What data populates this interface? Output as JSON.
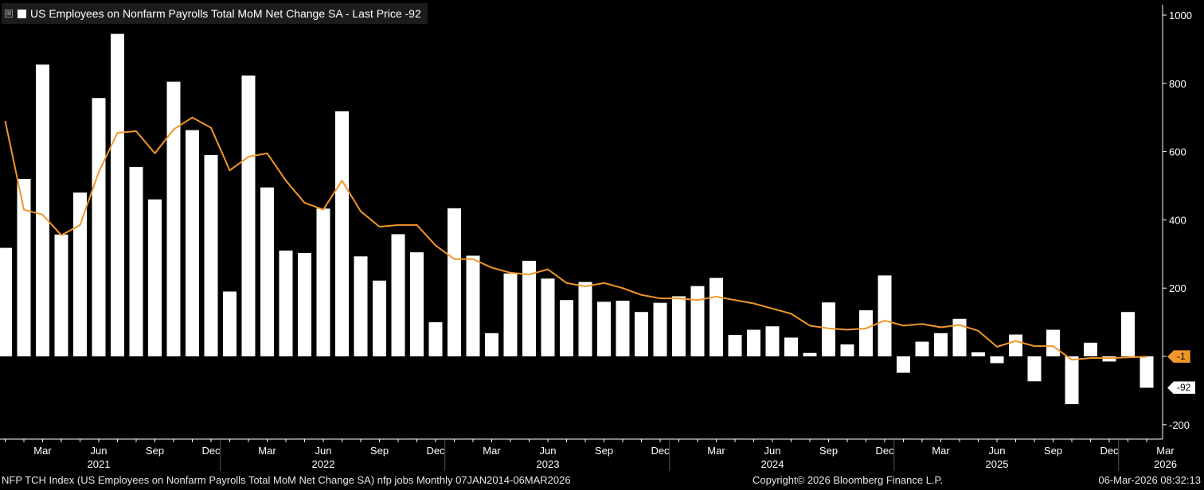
{
  "legend": {
    "expand_symbol": "⊞",
    "label": "US Employees on Nonfarm Payrolls Total MoM Net Change SA - Last Price -92"
  },
  "footer": {
    "left": "NFP TCH Index (US Employees on Nonfarm Payrolls Total MoM Net Change SA) nfp jobs Monthly 07JAN2014-06MAR2026",
    "center": "Copyright© 2026 Bloomberg Finance L.P.",
    "right": "06-Mar-2026 08:32:13"
  },
  "tags": {
    "moving_average": "-1",
    "last_price": "-92"
  },
  "colors": {
    "background": "#000000",
    "bars": "#ffffff",
    "moving_average": "#f0962a",
    "axis": "#ffffff"
  },
  "chart_data": {
    "type": "bar",
    "title": "US Employees on Nonfarm Payrolls Total MoM Net Change SA - Last Price -92",
    "ylim": [
      -240,
      1020
    ],
    "yticks": [
      -200,
      0,
      200,
      400,
      600,
      800,
      1000
    ],
    "ytick_labels": [
      "-200",
      "",
      "200",
      "400",
      "600",
      "800",
      "1000"
    ],
    "month_labels": [
      {
        "index": 2,
        "label": "Mar"
      },
      {
        "index": 5,
        "label": "Jun"
      },
      {
        "index": 8,
        "label": "Sep"
      },
      {
        "index": 11,
        "label": "Dec"
      },
      {
        "index": 14,
        "label": "Mar"
      },
      {
        "index": 17,
        "label": "Jun"
      },
      {
        "index": 20,
        "label": "Sep"
      },
      {
        "index": 23,
        "label": "Dec"
      },
      {
        "index": 26,
        "label": "Mar"
      },
      {
        "index": 29,
        "label": "Jun"
      },
      {
        "index": 32,
        "label": "Sep"
      },
      {
        "index": 35,
        "label": "Dec"
      },
      {
        "index": 38,
        "label": "Mar"
      },
      {
        "index": 41,
        "label": "Jun"
      },
      {
        "index": 44,
        "label": "Sep"
      },
      {
        "index": 47,
        "label": "Dec"
      },
      {
        "index": 50,
        "label": "Mar"
      },
      {
        "index": 53,
        "label": "Jun"
      },
      {
        "index": 56,
        "label": "Sep"
      },
      {
        "index": 59,
        "label": "Dec"
      },
      {
        "index": 62,
        "label": "Mar"
      }
    ],
    "year_labels": [
      {
        "index": 5,
        "label": "2021"
      },
      {
        "index": 17,
        "label": "2022"
      },
      {
        "index": 29,
        "label": "2023"
      },
      {
        "index": 41,
        "label": "2024"
      },
      {
        "index": 53,
        "label": "2025"
      },
      {
        "index": 62,
        "label": "2026"
      }
    ],
    "year_boundaries": [
      11.5,
      23.5,
      35.5,
      47.5,
      59.5
    ],
    "series": [
      {
        "name": "US Employees on Nonfarm Payrolls Total MoM Net Change SA",
        "type": "bar",
        "values": [
          318,
          520,
          855,
          357,
          480,
          757,
          945,
          555,
          460,
          805,
          663,
          590,
          190,
          823,
          495,
          310,
          303,
          433,
          718,
          293,
          222,
          358,
          305,
          100,
          434,
          295,
          68,
          243,
          280,
          228,
          165,
          218,
          160,
          163,
          130,
          157,
          176,
          206,
          230,
          63,
          78,
          88,
          55,
          10,
          158,
          35,
          135,
          237,
          -48,
          43,
          68,
          110,
          12,
          -20,
          64,
          -73,
          78,
          -140,
          40,
          -15,
          130,
          -92
        ]
      },
      {
        "name": "Moving Average",
        "type": "line",
        "values": [
          690,
          430,
          415,
          355,
          385,
          540,
          655,
          660,
          595,
          665,
          700,
          670,
          545,
          585,
          595,
          515,
          450,
          430,
          515,
          425,
          380,
          385,
          385,
          325,
          285,
          285,
          260,
          245,
          240,
          255,
          215,
          205,
          215,
          200,
          180,
          170,
          170,
          165,
          175,
          165,
          155,
          140,
          125,
          90,
          82,
          78,
          82,
          105,
          90,
          95,
          85,
          92,
          75,
          28,
          45,
          30,
          30,
          -10,
          -5,
          -5,
          -3,
          -1
        ]
      }
    ]
  }
}
